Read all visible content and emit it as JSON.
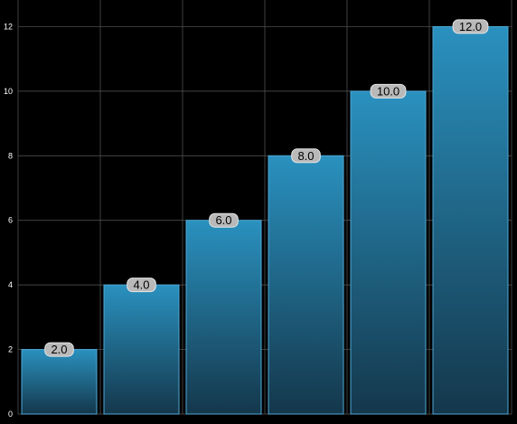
{
  "chart_data": {
    "type": "bar",
    "categories": [
      "",
      "",
      "",
      "",
      "",
      ""
    ],
    "values": [
      2.0,
      4.0,
      6.0,
      8.0,
      10.0,
      12.0
    ],
    "data_labels": [
      "2.0",
      "4.0",
      "6.0",
      "8.0",
      "10.0",
      "12.0"
    ],
    "y_ticks": [
      0,
      2,
      4,
      6,
      8,
      10,
      12
    ],
    "ylim": [
      0,
      12.6
    ],
    "title": "",
    "xlabel": "",
    "ylabel": "",
    "grid": true,
    "legend": "none"
  },
  "colors": {
    "background": "#000000",
    "grid": "#5a5a5a",
    "bar_top": "#2a91bf",
    "bar_bottom": "#14374b",
    "bar_stroke": "#4ea8d6",
    "label_fill": "#b9b9b9",
    "label_stroke": "#e6e6e6",
    "label_text": "#000000",
    "axis_text": "#ffffff"
  }
}
